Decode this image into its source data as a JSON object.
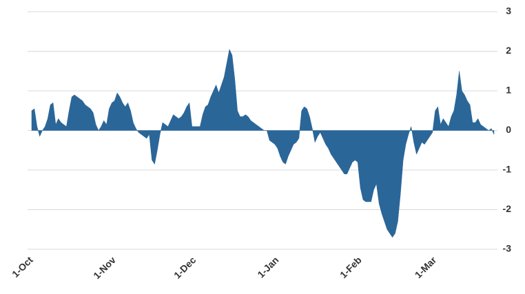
{
  "chart_data": {
    "type": "area",
    "color": "#2b6699",
    "grid": true,
    "ylim": [
      -3,
      3
    ],
    "yticks": [
      -3,
      -2,
      -1,
      0,
      1,
      2,
      3
    ],
    "categories": [
      "1-Oct",
      null,
      null,
      null,
      null,
      null,
      null,
      null,
      null,
      null,
      null,
      null,
      null,
      null,
      null,
      null,
      null,
      null,
      null,
      null,
      null,
      null,
      null,
      null,
      null,
      null,
      null,
      null,
      null,
      null,
      null,
      "1-Nov",
      null,
      null,
      null,
      null,
      null,
      null,
      null,
      null,
      null,
      null,
      null,
      null,
      null,
      null,
      null,
      null,
      null,
      null,
      null,
      null,
      null,
      null,
      null,
      null,
      null,
      null,
      null,
      null,
      null,
      "1-Dec",
      null,
      null,
      null,
      null,
      null,
      null,
      null,
      null,
      null,
      null,
      null,
      null,
      null,
      null,
      null,
      null,
      null,
      null,
      null,
      null,
      null,
      null,
      null,
      null,
      null,
      null,
      null,
      null,
      null,
      null,
      "1-Jan",
      null,
      null,
      null,
      null,
      null,
      null,
      null,
      null,
      null,
      null,
      null,
      null,
      null,
      null,
      null,
      null,
      null,
      null,
      null,
      null,
      null,
      null,
      null,
      null,
      null,
      null,
      null,
      null,
      null,
      null,
      "1-Feb",
      null,
      null,
      null,
      null,
      null,
      null,
      null,
      null,
      null,
      null,
      null,
      null,
      null,
      null,
      null,
      null,
      null,
      null,
      null,
      null,
      null,
      null,
      null,
      null,
      null,
      null,
      null,
      "1-Mar",
      null,
      null,
      null,
      null,
      null,
      null,
      null,
      null,
      null,
      null,
      null,
      null,
      null,
      null,
      null,
      null,
      null,
      null,
      null,
      null,
      null,
      null
    ],
    "values": [
      0.5,
      0.55,
      0.1,
      -0.15,
      0,
      0.1,
      0.3,
      0.65,
      0.7,
      0.15,
      0.3,
      0.2,
      0.15,
      0.1,
      0.5,
      0.85,
      0.9,
      0.85,
      0.8,
      0.75,
      0.65,
      0.6,
      0.55,
      0.45,
      0.15,
      0.0,
      0.1,
      0.25,
      0.15,
      0.55,
      0.7,
      0.75,
      0.95,
      0.85,
      0.7,
      0.6,
      0.7,
      0.5,
      0.2,
      0.05,
      -0.05,
      -0.1,
      -0.15,
      -0.2,
      -0.1,
      -0.75,
      -0.85,
      -0.5,
      -0.1,
      0.2,
      0.15,
      0.1,
      0.25,
      0.4,
      0.35,
      0.3,
      0.35,
      0.45,
      0.6,
      0.7,
      0.1,
      0.1,
      0.1,
      0.1,
      0.4,
      0.6,
      0.65,
      0.85,
      1.0,
      1.15,
      0.95,
      1.15,
      1.35,
      1.7,
      2.05,
      1.9,
      1.3,
      0.5,
      0.35,
      0.35,
      0.4,
      0.35,
      0.25,
      0.2,
      0.15,
      0.1,
      0.05,
      0,
      0,
      -0.25,
      -0.3,
      -0.35,
      -0.45,
      -0.65,
      -0.8,
      -0.85,
      -0.65,
      -0.5,
      -0.35,
      -0.3,
      -0.2,
      0.5,
      0.6,
      0.55,
      0.35,
      0.05,
      -0.3,
      -0.15,
      -0.05,
      -0.2,
      -0.35,
      -0.45,
      -0.6,
      -0.7,
      -0.8,
      -0.9,
      -1.0,
      -1.1,
      -1.1,
      -0.95,
      -0.8,
      -0.75,
      -0.8,
      -1.45,
      -1.75,
      -1.8,
      -1.8,
      -1.8,
      -1.5,
      -1.35,
      -1.85,
      -2.1,
      -2.3,
      -2.5,
      -2.6,
      -2.7,
      -2.6,
      -2.3,
      -1.6,
      -0.75,
      -0.35,
      -0.1,
      0.1,
      -0.3,
      -0.6,
      -0.45,
      -0.3,
      -0.35,
      -0.25,
      -0.15,
      -0.05,
      0.5,
      0.6,
      0.15,
      0.3,
      0.2,
      0.1,
      0.35,
      0.5,
      0.9,
      1.5,
      1.0,
      0.9,
      0.75,
      0.65,
      0.2,
      0.2,
      0.3,
      0.15,
      0.1,
      0.05,
      0.0,
      0.05,
      -0.1
    ]
  }
}
